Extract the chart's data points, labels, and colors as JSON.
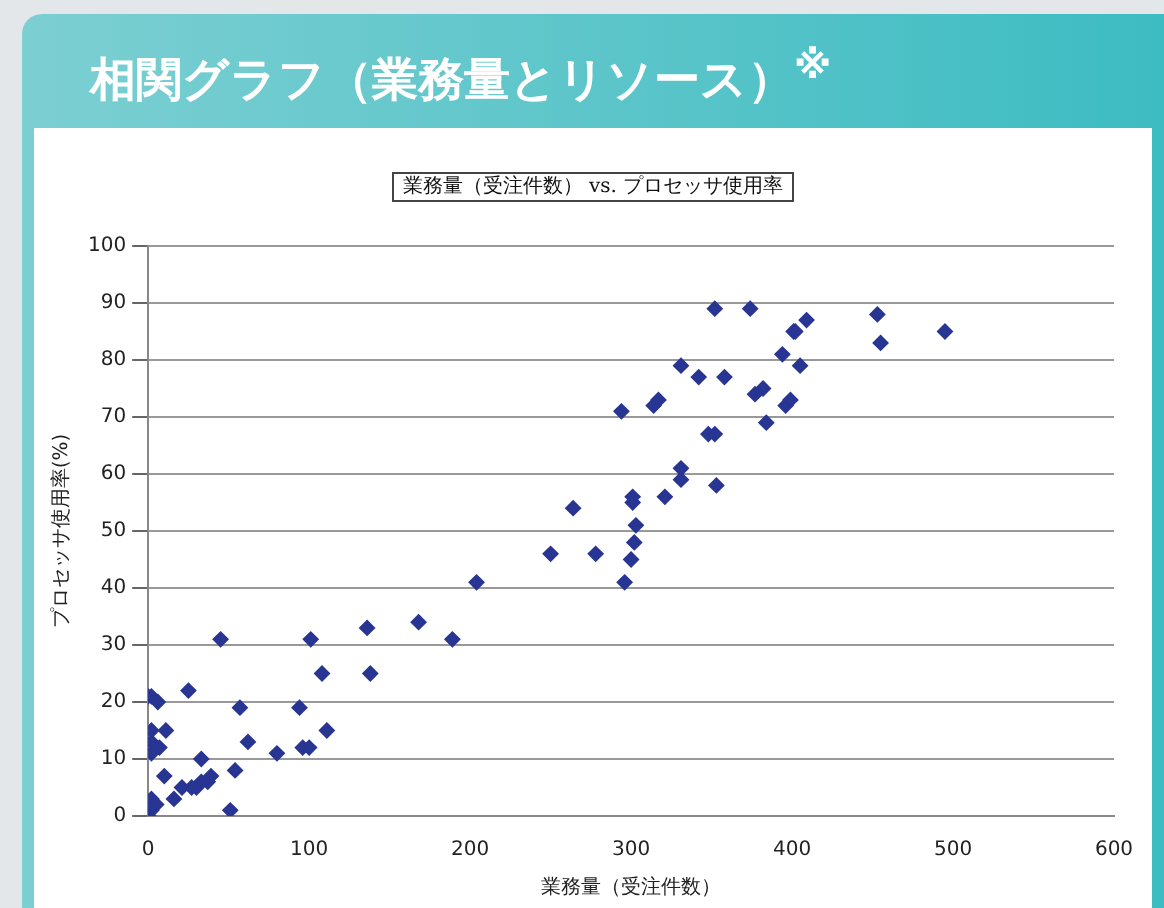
{
  "chart_data": {
    "type": "scatter",
    "title": "相関グラフ（業務量とリソース）$^{※}$",
    "subtitle": "業務量（受注件数） vs. プロセッサ使用率",
    "xlabel": "業務量（受注件数）",
    "ylabel": "プロセッサ使用率(%)",
    "xlim": [
      0,
      600
    ],
    "xticks": [
      0,
      100,
      200,
      300,
      400,
      500,
      600
    ],
    "ylim": [
      0,
      100
    ],
    "yticks": [
      0,
      10,
      20,
      30,
      40,
      50,
      60,
      70,
      80,
      90,
      100
    ],
    "grid": "y",
    "legend": false,
    "marker": "diamond",
    "series": [
      {
        "color": "#283593",
        "x": [
          0,
          2,
          6,
          2,
          11,
          2,
          7,
          2,
          10,
          2,
          5,
          2,
          0,
          16,
          21,
          25,
          27,
          30,
          33,
          33,
          37,
          39,
          45,
          51,
          54,
          57,
          62,
          80,
          94,
          96,
          100,
          101,
          108,
          111,
          136,
          138,
          168,
          189,
          204,
          250,
          264,
          278,
          294,
          296,
          300,
          302,
          303,
          301,
          301,
          314,
          317,
          321,
          331,
          331,
          331,
          342,
          348,
          352,
          353,
          352,
          358,
          374,
          377,
          382,
          384,
          394,
          396,
          399,
          401,
          402,
          409,
          405,
          453,
          455,
          495
        ],
        "values": [
          21,
          21,
          20,
          15,
          15,
          13,
          12,
          11,
          7,
          3,
          2,
          1,
          0,
          3,
          5,
          22,
          5,
          5,
          10,
          6,
          6,
          7,
          31,
          1,
          8,
          19,
          13,
          11,
          19,
          12,
          12,
          31,
          25,
          15,
          33,
          25,
          34,
          31,
          41,
          46,
          54,
          46,
          71,
          41,
          45,
          48,
          51,
          56,
          55,
          72,
          73,
          56,
          61,
          59,
          79,
          77,
          67,
          67,
          58,
          89,
          77,
          89,
          74,
          75,
          69,
          81,
          72,
          73,
          85,
          85,
          87,
          79,
          88,
          83,
          85
        ]
      }
    ]
  }
}
